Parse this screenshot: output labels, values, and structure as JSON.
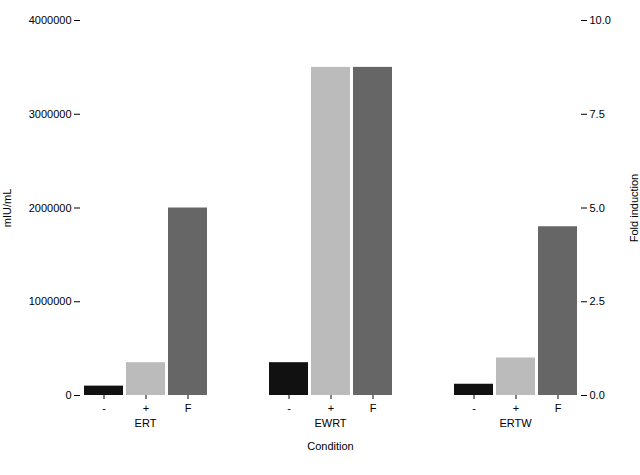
{
  "chart_data": {
    "type": "bar",
    "categories": [
      "ERT",
      "EWRT",
      "ERTW"
    ],
    "series": [
      {
        "name": "-",
        "color": "#111111",
        "values": [
          100000,
          350000,
          120000
        ]
      },
      {
        "name": "+",
        "color": "#bbbbbb",
        "values": [
          350000,
          3500000,
          400000
        ]
      },
      {
        "name": "F",
        "color": "#666666",
        "values": [
          2000000,
          3500000,
          1800000
        ]
      }
    ],
    "xlabel": "Condition",
    "ylabel": "mIU/mL",
    "y2label": "Fold induction",
    "ylim": [
      0,
      4000000
    ],
    "yticks": [
      0,
      1000000,
      2000000,
      3000000,
      4000000
    ],
    "y2lim": [
      0,
      10.0
    ],
    "y2ticks": [
      {
        "value": 0,
        "label": "0.0"
      },
      2.5,
      {
        "value": 5,
        "label": "5.0"
      },
      7.5,
      {
        "value": 10,
        "label": "10.0"
      }
    ],
    "legend": false,
    "grid": false
  }
}
